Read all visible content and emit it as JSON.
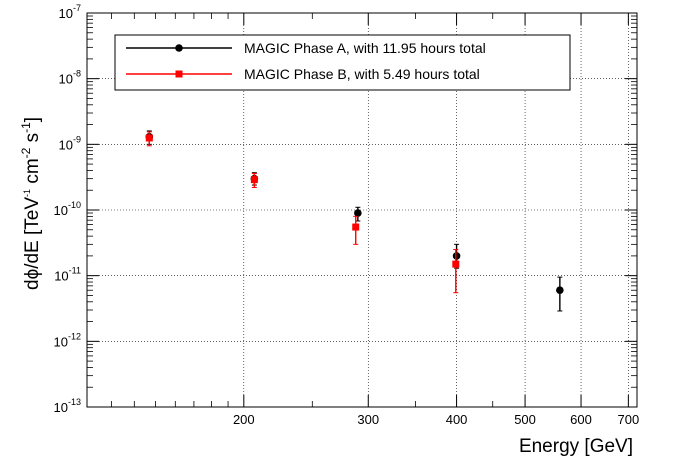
{
  "chart_data": {
    "type": "scatter",
    "xlabel": "Energy [GeV]",
    "ylabel": {
      "prefix": "dϕ/dE [TeV",
      "exp1": "-1",
      "mid": " cm",
      "exp2": "-2",
      "mid2": " s",
      "exp3": "-1",
      "suffix": "]"
    },
    "x_scale": "log",
    "y_scale": "log",
    "xlim": [
      120,
      720
    ],
    "ylim": [
      1e-13,
      1e-07
    ],
    "grid": true,
    "legend_position": "top",
    "x_tick_labels": [
      {
        "value": 200,
        "label": "200"
      },
      {
        "value": 300,
        "label": "300"
      },
      {
        "value": 400,
        "label": "400"
      },
      {
        "value": 500,
        "label": "500"
      },
      {
        "value": 600,
        "label": "600"
      },
      {
        "value": 700,
        "label": "700"
      }
    ],
    "y_tick_labels": [
      {
        "value": 1e-13,
        "base": "10",
        "exp": "-13"
      },
      {
        "value": 1e-12,
        "base": "10",
        "exp": "-12"
      },
      {
        "value": 1e-11,
        "base": "10",
        "exp": "-11"
      },
      {
        "value": 1e-10,
        "base": "10",
        "exp": "-10"
      },
      {
        "value": 1e-09,
        "base": "10",
        "exp": "-9"
      },
      {
        "value": 1e-08,
        "base": "10",
        "exp": "-8"
      },
      {
        "value": 1e-07,
        "base": "10",
        "exp": "-7"
      }
    ],
    "series": [
      {
        "name": "MAGIC Phase A, with 11.95 hours total",
        "color": "#000000",
        "marker": "circle",
        "points": [
          {
            "x": 147,
            "y": 1.3e-09,
            "y_low": 1e-09,
            "y_high": 1.6e-09
          },
          {
            "x": 207,
            "y": 3e-10,
            "y_low": 2.4e-10,
            "y_high": 3.7e-10
          },
          {
            "x": 290,
            "y": 9e-11,
            "y_low": 6.8e-11,
            "y_high": 1.1e-10
          },
          {
            "x": 400,
            "y": 2e-11,
            "y_low": 1.3e-11,
            "y_high": 3e-11
          },
          {
            "x": 560,
            "y": 6e-12,
            "y_low": 2.9e-12,
            "y_high": 9.5e-12
          }
        ]
      },
      {
        "name": "MAGIC Phase B, with 5.49 hours total",
        "color": "#ff0000",
        "marker": "square",
        "points": [
          {
            "x": 147,
            "y": 1.25e-09,
            "y_low": 9.5e-10,
            "y_high": 1.55e-09
          },
          {
            "x": 207,
            "y": 2.9e-10,
            "y_low": 2.2e-10,
            "y_high": 3.6e-10
          },
          {
            "x": 288,
            "y": 5.5e-11,
            "y_low": 3e-11,
            "y_high": 8e-11
          },
          {
            "x": 399,
            "y": 1.5e-11,
            "y_low": 5.5e-12,
            "y_high": 2.5e-11
          }
        ]
      }
    ]
  }
}
